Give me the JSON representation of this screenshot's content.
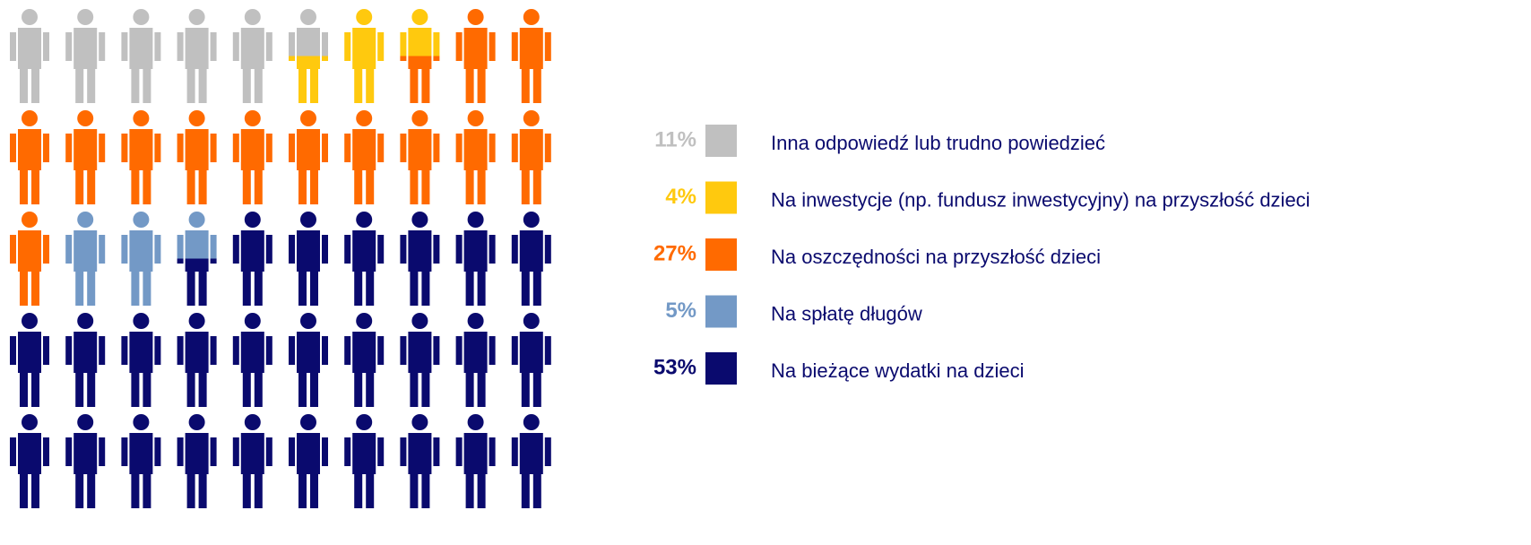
{
  "chart_data": {
    "type": "pictogram",
    "categories": [
      "Inna odpowiedź lub trudno powiedzieć",
      "Na inwestycje (np. fundusz inwestycyjny) na przyszłość dzieci",
      "Na oszczędności na przyszłość dzieci",
      "Na spłatę długów",
      "Na bieżące wydatki na dzieci"
    ],
    "values": [
      11,
      4,
      27,
      5,
      53
    ],
    "value_labels": [
      "11%",
      "4%",
      "27%",
      "5%",
      "53%"
    ],
    "colors": [
      "#c0c0c0",
      "#ffc90e",
      "#ff6a00",
      "#7399c6",
      "#0a0a6e"
    ]
  }
}
